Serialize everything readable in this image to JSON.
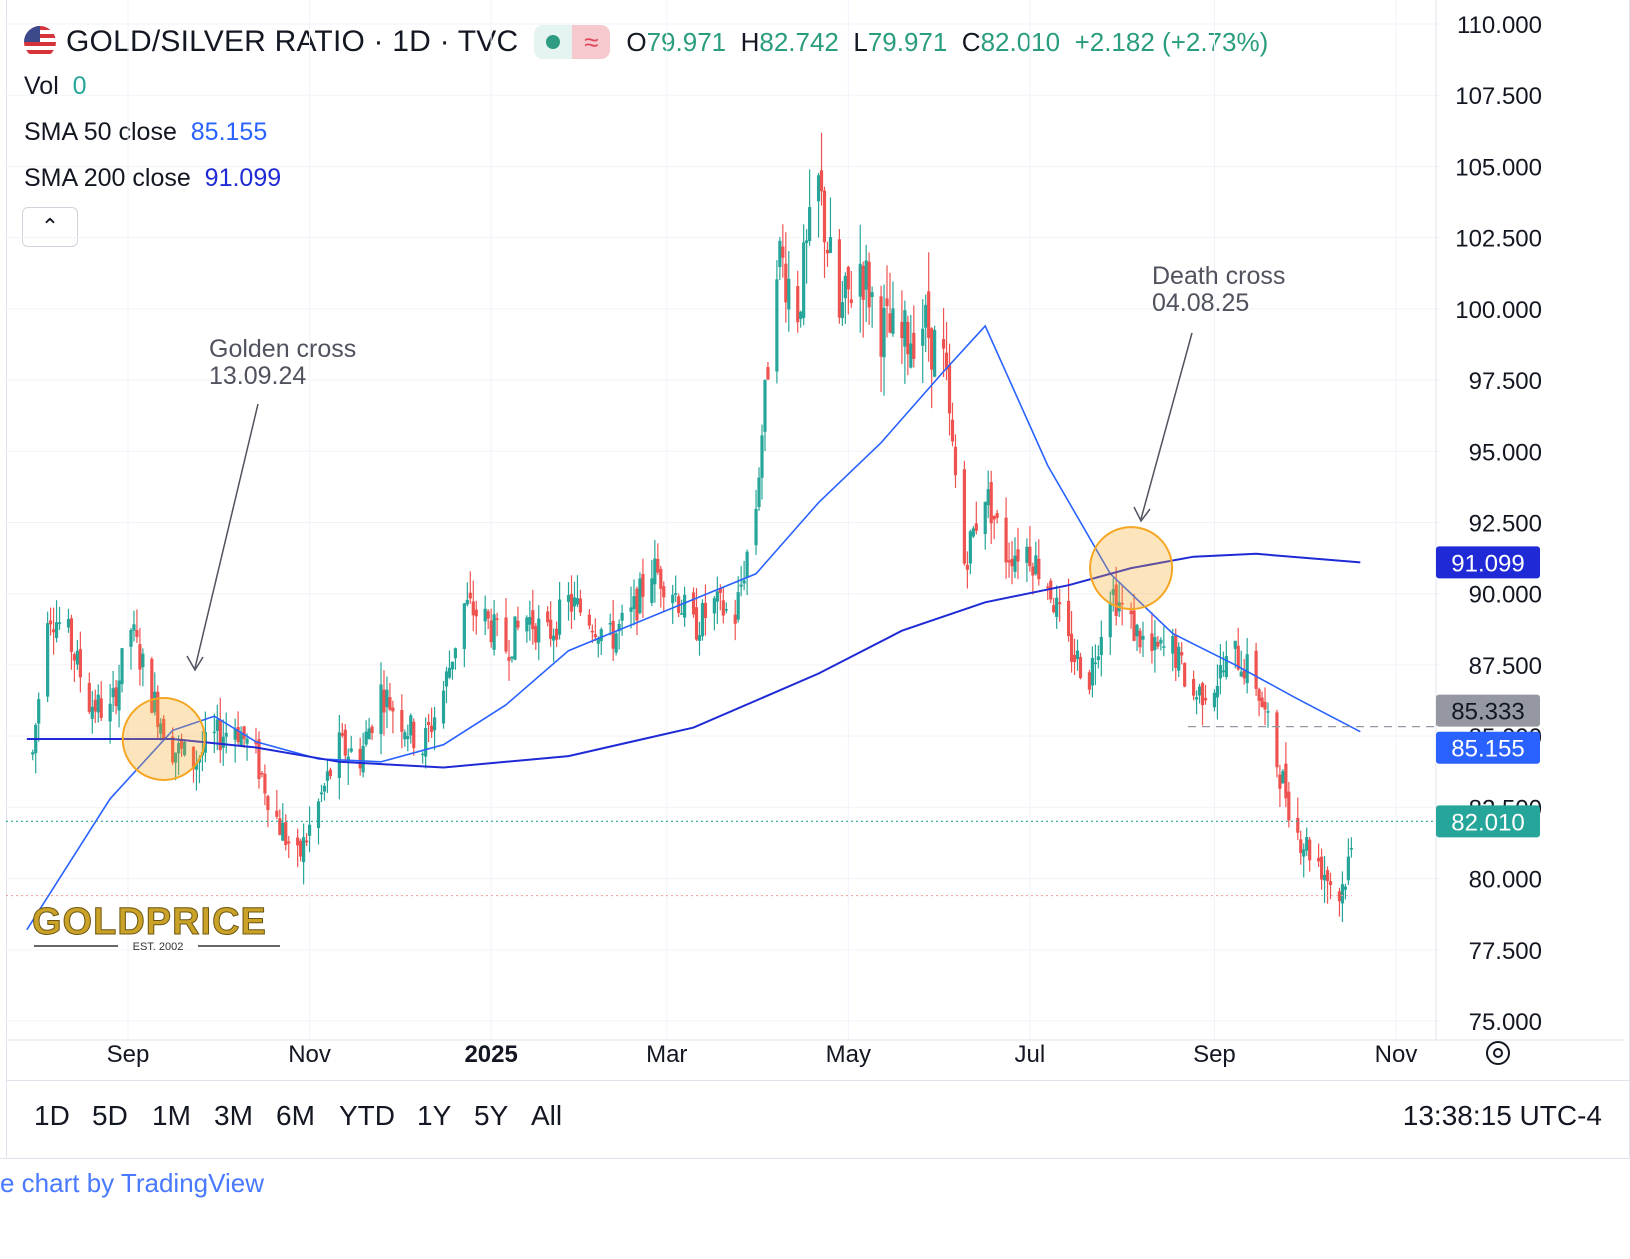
{
  "header": {
    "symbol": "GOLD/SILVER RATIO · 1D · TVC",
    "open_label": "O",
    "open": "79.971",
    "high_label": "H",
    "high": "82.742",
    "low_label": "L",
    "low": "79.971",
    "close_label": "C",
    "close": "82.010",
    "change": "+2.182 (+2.73%)"
  },
  "indicators": {
    "vol_label": "Vol",
    "vol_value": "0",
    "sma50_label": "SMA 50 close",
    "sma50_value": "85.155",
    "sma200_label": "SMA 200 close",
    "sma200_value": "91.099"
  },
  "collapse_glyph": "⌃",
  "timeframes": [
    "1D",
    "5D",
    "1M",
    "3M",
    "6M",
    "YTD",
    "1Y",
    "5Y",
    "All"
  ],
  "clock": "13:38:15 UTC-4",
  "credit": "e chart by TradingView",
  "watermark": {
    "brand": "GOLDPRICE",
    "est": "EST. 2002"
  },
  "colors": {
    "up": "#26a69a",
    "down": "#ef5350",
    "sma50": "#2962ff",
    "sma200": "#1f2ad6",
    "circle": "#f5a623",
    "last_price": "#26a69a"
  },
  "chart_data": {
    "type": "candlestick",
    "title": "GOLD/SILVER RATIO · 1D · TVC",
    "y_ticks": [
      "110.000",
      "107.500",
      "105.000",
      "102.500",
      "100.000",
      "97.500",
      "95.000",
      "92.500",
      "90.000",
      "87.500",
      "85.000",
      "82.500",
      "80.000",
      "77.500",
      "75.000"
    ],
    "ylim": [
      75,
      110
    ],
    "x_ticks": [
      "Sep",
      "Nov",
      "2025",
      "Mar",
      "May",
      "Jul",
      "Sep",
      "Nov"
    ],
    "price_labels": {
      "sma200": "91.099",
      "high_marker": "85.333",
      "sma50": "85.155",
      "last": "82.010"
    },
    "annotations": [
      {
        "text": "Golden cross",
        "date": "13.09.24"
      },
      {
        "text": "Death cross",
        "date": "04.08.25"
      }
    ],
    "price_path": [
      [
        "2024-07-29",
        82.3
      ],
      [
        "2024-08-05",
        89.5
      ],
      [
        "2024-08-12",
        88.5
      ],
      [
        "2024-08-19",
        86.2
      ],
      [
        "2024-08-26",
        85.8
      ],
      [
        "2024-09-02",
        88.8
      ],
      [
        "2024-09-09",
        86.4
      ],
      [
        "2024-09-16",
        84.6
      ],
      [
        "2024-09-23",
        84.1
      ],
      [
        "2024-09-30",
        84.9
      ],
      [
        "2024-10-07",
        85.4
      ],
      [
        "2024-10-14",
        84.2
      ],
      [
        "2024-10-21",
        82.1
      ],
      [
        "2024-10-28",
        80.6
      ],
      [
        "2024-11-04",
        82.6
      ],
      [
        "2024-11-11",
        84.6
      ],
      [
        "2024-11-18",
        84.3
      ],
      [
        "2024-11-25",
        86.6
      ],
      [
        "2024-12-02",
        85.6
      ],
      [
        "2024-12-09",
        84.6
      ],
      [
        "2024-12-16",
        86.6
      ],
      [
        "2024-12-23",
        89.6
      ],
      [
        "2024-12-30",
        89.1
      ],
      [
        "2025-01-06",
        88.1
      ],
      [
        "2025-01-13",
        89.2
      ],
      [
        "2025-01-20",
        88.5
      ],
      [
        "2025-01-27",
        89.7
      ],
      [
        "2025-02-03",
        89.2
      ],
      [
        "2025-02-10",
        88.4
      ],
      [
        "2025-02-17",
        89.2
      ],
      [
        "2025-02-24",
        90.9
      ],
      [
        "2025-03-03",
        90.2
      ],
      [
        "2025-03-10",
        88.8
      ],
      [
        "2025-03-17",
        89.6
      ],
      [
        "2025-03-24",
        89.2
      ],
      [
        "2025-03-31",
        93.1
      ],
      [
        "2025-04-07",
        102.1
      ],
      [
        "2025-04-14",
        100.1
      ],
      [
        "2025-04-21",
        104.3
      ],
      [
        "2025-04-28",
        99.6
      ],
      [
        "2025-05-05",
        101.6
      ],
      [
        "2025-05-12",
        99.4
      ],
      [
        "2025-05-19",
        98.8
      ],
      [
        "2025-05-26",
        99.6
      ],
      [
        "2025-06-02",
        98.0
      ],
      [
        "2025-06-09",
        91.1
      ],
      [
        "2025-06-16",
        93.6
      ],
      [
        "2025-06-23",
        91.4
      ],
      [
        "2025-06-30",
        91.6
      ],
      [
        "2025-07-07",
        90.4
      ],
      [
        "2025-07-14",
        88.1
      ],
      [
        "2025-07-21",
        87.1
      ],
      [
        "2025-07-28",
        90.2
      ],
      [
        "2025-08-04",
        88.9
      ],
      [
        "2025-08-11",
        87.9
      ],
      [
        "2025-08-18",
        88.1
      ],
      [
        "2025-08-25",
        86.4
      ],
      [
        "2025-09-01",
        86.9
      ],
      [
        "2025-09-08",
        87.9
      ],
      [
        "2025-09-15",
        86.9
      ],
      [
        "2025-09-22",
        84.1
      ],
      [
        "2025-09-29",
        81.6
      ],
      [
        "2025-10-06",
        80.6
      ],
      [
        "2025-10-13",
        79.4
      ],
      [
        "2025-10-20",
        82.01
      ]
    ],
    "series": [
      {
        "name": "SMA 50 close",
        "points": [
          [
            "2024-07-29",
            78.2
          ],
          [
            "2024-08-26",
            82.8
          ],
          [
            "2024-09-16",
            85.2
          ],
          [
            "2024-09-30",
            85.7
          ],
          [
            "2024-10-14",
            84.8
          ],
          [
            "2024-11-04",
            84.2
          ],
          [
            "2024-11-25",
            84.1
          ],
          [
            "2024-12-16",
            84.7
          ],
          [
            "2025-01-06",
            86.1
          ],
          [
            "2025-01-27",
            88.0
          ],
          [
            "2025-02-17",
            88.9
          ],
          [
            "2025-03-10",
            89.8
          ],
          [
            "2025-03-31",
            90.7
          ],
          [
            "2025-04-21",
            93.2
          ],
          [
            "2025-05-12",
            95.3
          ],
          [
            "2025-06-02",
            97.8
          ],
          [
            "2025-06-16",
            99.4
          ],
          [
            "2025-07-07",
            94.5
          ],
          [
            "2025-07-28",
            90.7
          ],
          [
            "2025-08-18",
            88.6
          ],
          [
            "2025-09-08",
            87.5
          ],
          [
            "2025-09-29",
            86.3
          ],
          [
            "2025-10-20",
            85.155
          ]
        ]
      },
      {
        "name": "SMA 200 close",
        "points": [
          [
            "2024-07-29",
            84.9
          ],
          [
            "2024-09-16",
            84.9
          ],
          [
            "2024-10-14",
            84.6
          ],
          [
            "2024-11-11",
            84.1
          ],
          [
            "2024-12-16",
            83.9
          ],
          [
            "2025-01-27",
            84.3
          ],
          [
            "2025-03-10",
            85.3
          ],
          [
            "2025-04-21",
            87.2
          ],
          [
            "2025-05-19",
            88.7
          ],
          [
            "2025-06-16",
            89.7
          ],
          [
            "2025-07-14",
            90.3
          ],
          [
            "2025-08-04",
            90.9
          ],
          [
            "2025-08-25",
            91.3
          ],
          [
            "2025-09-15",
            91.4
          ],
          [
            "2025-10-20",
            91.099
          ]
        ]
      }
    ]
  }
}
